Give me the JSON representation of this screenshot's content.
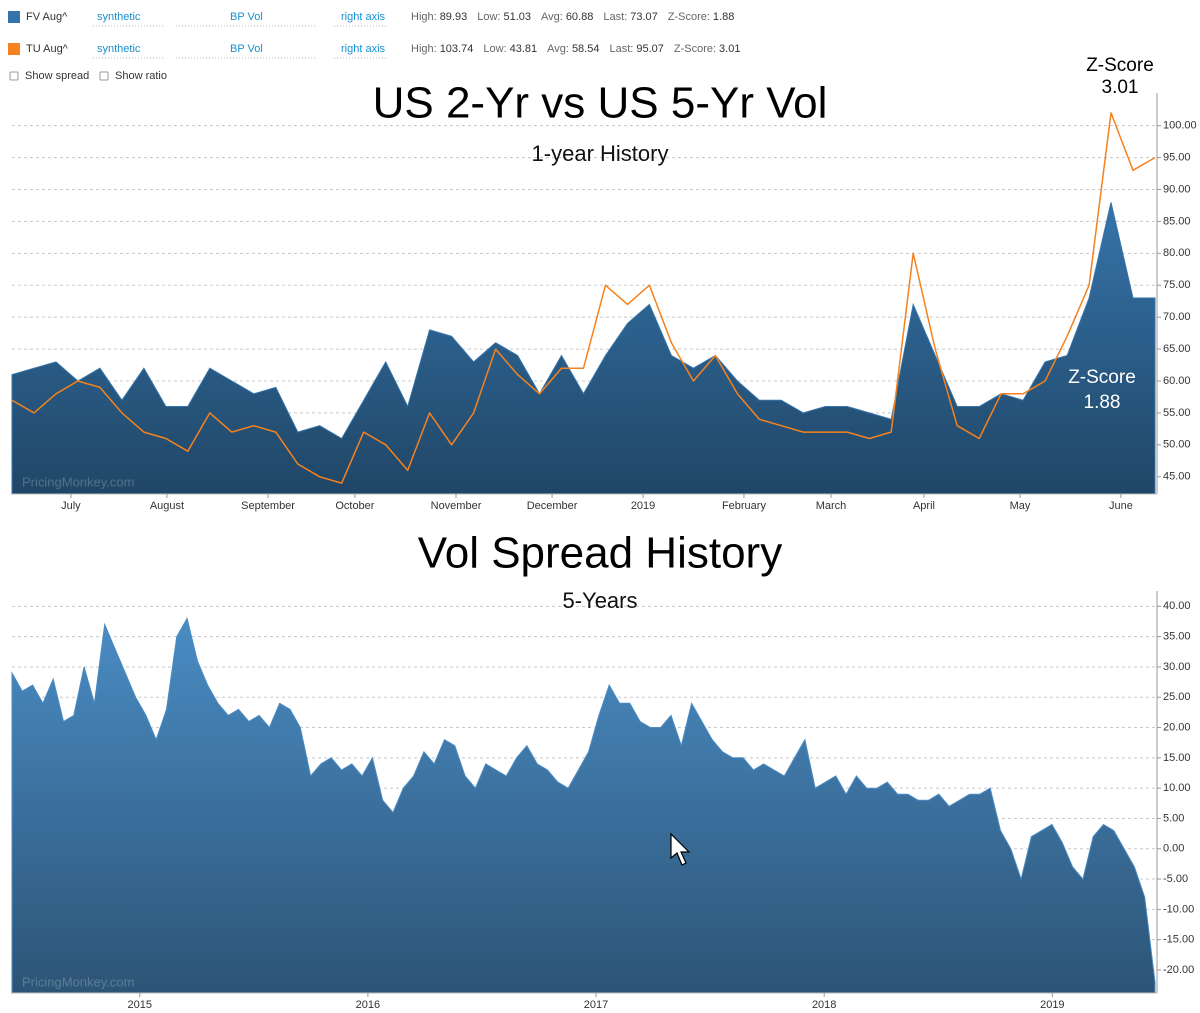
{
  "options": [
    "Show spread",
    "Show ratio"
  ],
  "chart_data": [
    {
      "type": "area",
      "title": "US 2-Yr vs US 5-Yr Vol",
      "subtitle": "1-year History",
      "watermark": "PricingMonkey.com",
      "xlim": [
        0,
        52
      ],
      "xticks": [
        {
          "value": 2.68,
          "label": "July"
        },
        {
          "value": 7.05,
          "label": "August"
        },
        {
          "value": 11.65,
          "label": "September"
        },
        {
          "value": 15.6,
          "label": "October"
        },
        {
          "value": 20.2,
          "label": "November"
        },
        {
          "value": 24.57,
          "label": "December"
        },
        {
          "value": 28.71,
          "label": "2019"
        },
        {
          "value": 33.3,
          "label": "February"
        },
        {
          "value": 37.26,
          "label": "March"
        },
        {
          "value": 41.49,
          "label": "April"
        },
        {
          "value": 45.86,
          "label": "May"
        },
        {
          "value": 50.45,
          "label": "June"
        }
      ],
      "ylim": [
        42.3,
        104.8
      ],
      "yticks": [
        {
          "value": 45,
          "label": "45.00"
        },
        {
          "value": 50,
          "label": "50.00"
        },
        {
          "value": 55,
          "label": "55.00"
        },
        {
          "value": 60,
          "label": "60.00"
        },
        {
          "value": 65,
          "label": "65.00"
        },
        {
          "value": 70,
          "label": "70.00"
        },
        {
          "value": 75,
          "label": "75.00"
        },
        {
          "value": 80,
          "label": "80.00"
        },
        {
          "value": 85,
          "label": "85.00"
        },
        {
          "value": 90,
          "label": "90.00"
        },
        {
          "value": 95,
          "label": "95.00"
        },
        {
          "value": 100,
          "label": "100.00"
        }
      ],
      "grid": true,
      "series": [
        {
          "name": "FV Aug^",
          "type": "area",
          "color": "#3574aa",
          "source": "synthetic",
          "measure": "BP Vol",
          "axis_label": "right axis",
          "stats": [
            {
              "label": "High:",
              "value": 89.93
            },
            {
              "label": "Low:",
              "value": 51.03
            },
            {
              "label": "Avg:",
              "value": 60.88
            },
            {
              "label": "Last:",
              "value": 73.07
            },
            {
              "label": "Z-Score:",
              "value": 1.88
            }
          ],
          "values": [
            61,
            62,
            63,
            60,
            62,
            57,
            62,
            56,
            56,
            62,
            60,
            58,
            59,
            52,
            53,
            51,
            57,
            63,
            56,
            68,
            67,
            63,
            66,
            64,
            58,
            64,
            58,
            64,
            69,
            72,
            64,
            62,
            64,
            60,
            57,
            57,
            55,
            56,
            56,
            55,
            54,
            72,
            64,
            56,
            56,
            58,
            57,
            63,
            64,
            73,
            88,
            73,
            73
          ]
        },
        {
          "name": "TU Aug^",
          "type": "line",
          "color": "#f5821f",
          "source": "synthetic",
          "measure": "BP Vol",
          "axis_label": "right axis",
          "stats": [
            {
              "label": "High:",
              "value": 103.74
            },
            {
              "label": "Low:",
              "value": 43.81
            },
            {
              "label": "Avg:",
              "value": 58.54
            },
            {
              "label": "Last:",
              "value": 95.07
            },
            {
              "label": "Z-Score:",
              "value": 3.01
            }
          ],
          "values": [
            57,
            55,
            58,
            60,
            59,
            55,
            52,
            51,
            49,
            55,
            52,
            53,
            52,
            47,
            45,
            44,
            52,
            50,
            46,
            55,
            50,
            55,
            65,
            61,
            58,
            62,
            62,
            75,
            72,
            75,
            66,
            60,
            64,
            58,
            54,
            53,
            52,
            52,
            52,
            51,
            52,
            80,
            65,
            53,
            51,
            58,
            58,
            60,
            67,
            75,
            102,
            93,
            95
          ]
        }
      ],
      "annotations": [
        {
          "label": "Z-Score",
          "value": 3.01,
          "color": "#000000"
        },
        {
          "label": "Z-Score",
          "value": 1.88,
          "color": "#ffffff"
        }
      ]
    },
    {
      "type": "area",
      "title": "Vol Spread History",
      "subtitle": "5-Years",
      "watermark": "PricingMonkey.com",
      "color": "#4a8cc4",
      "xlim": [
        2014.44,
        2019.45
      ],
      "xticks": [
        2015,
        2016,
        2017,
        2018,
        2019
      ],
      "ylim": [
        -23.8,
        42.2
      ],
      "yticks": [
        {
          "value": -20,
          "label": "-20.00"
        },
        {
          "value": -15,
          "label": "-15.00"
        },
        {
          "value": -10,
          "label": "-10.00"
        },
        {
          "value": -5,
          "label": "-5.00"
        },
        {
          "value": 0,
          "label": "0.00"
        },
        {
          "value": 5,
          "label": "5.00"
        },
        {
          "value": 10,
          "label": "10.00"
        },
        {
          "value": 15,
          "label": "15.00"
        },
        {
          "value": 20,
          "label": "20.00"
        },
        {
          "value": 25,
          "label": "25.00"
        },
        {
          "value": 30,
          "label": "30.00"
        },
        {
          "value": 35,
          "label": "35.00"
        },
        {
          "value": 40,
          "label": "40.00"
        }
      ],
      "grid": true,
      "values": [
        29,
        26,
        27,
        24,
        28,
        21,
        22,
        30,
        24,
        37,
        33,
        29,
        25,
        22,
        18,
        23,
        35,
        38,
        31,
        27,
        24,
        22,
        23,
        21,
        22,
        20,
        24,
        23,
        20,
        12,
        14,
        15,
        13,
        14,
        12,
        15,
        8,
        6,
        10,
        12,
        16,
        14,
        18,
        17,
        12,
        10,
        14,
        13,
        12,
        15,
        17,
        14,
        13,
        11,
        10,
        13,
        16,
        22,
        27,
        24,
        24,
        21,
        20,
        20,
        22,
        17,
        24,
        21,
        18,
        16,
        15,
        15,
        13,
        14,
        13,
        12,
        15,
        18,
        10,
        11,
        12,
        9,
        12,
        10,
        10,
        11,
        9,
        9,
        8,
        8,
        9,
        7,
        8,
        9,
        9,
        10,
        3,
        0,
        -5,
        2,
        3,
        4,
        1,
        -3,
        -5,
        2,
        4,
        3,
        0,
        -3,
        -8,
        -22
      ]
    }
  ]
}
